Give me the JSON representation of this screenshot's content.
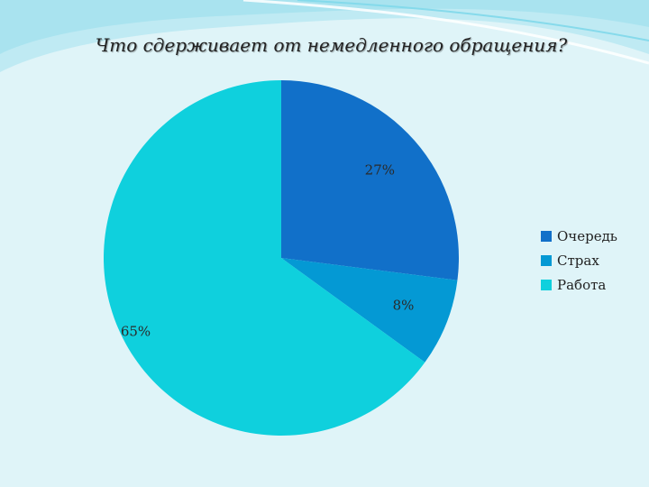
{
  "chart_data": {
    "type": "pie",
    "title": "Что сдерживает от немедленного обращения?",
    "categories": [
      "Очередь",
      "Страх",
      "Работа"
    ],
    "values": [
      27,
      8,
      65
    ],
    "data_labels": [
      "27%",
      "8%",
      "65%"
    ],
    "colors": [
      "#1170c9",
      "#0499d4",
      "#0fd0dd"
    ],
    "legend_position": "right"
  },
  "theme": {
    "background": "#dff4f8",
    "wave_light": "#ffffff",
    "wave_accent": "#7fd8ea"
  }
}
